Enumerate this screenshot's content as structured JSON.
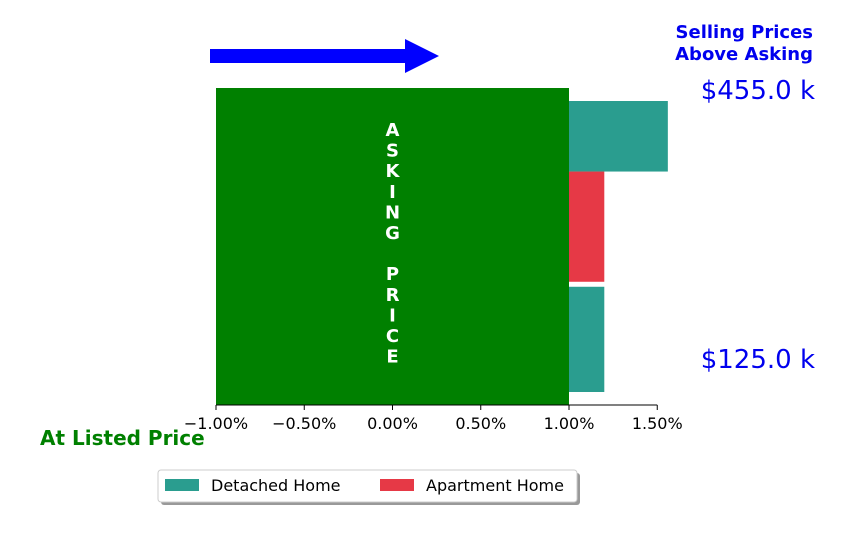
{
  "chart_data": {
    "type": "bar",
    "orientation": "horizontal",
    "title_lines": [
      "Selling Prices",
      "Above Asking"
    ],
    "x_ticks": [
      -1.0,
      -0.5,
      0.0,
      0.5,
      1.0,
      1.5
    ],
    "x_tick_labels": [
      "−1.00%",
      "−0.50%",
      "0.00%",
      "0.50%",
      "1.00%",
      "1.50%"
    ],
    "xlim": [
      -1.0,
      1.7
    ],
    "asking_block": {
      "from": -1.0,
      "to": 1.0,
      "color": "#008000",
      "label_letters": [
        "A",
        "S",
        "K",
        "I",
        "N",
        "G",
        "",
        "P",
        "R",
        "I",
        "C",
        "E"
      ]
    },
    "bars": [
      {
        "series": "Detached Home",
        "start": 1.0,
        "value": 1.56,
        "price_range": [
          375,
          455
        ]
      },
      {
        "series": "Apartment Home",
        "start": 1.0,
        "value": 1.2,
        "price_range": [
          250,
          375
        ]
      },
      {
        "series": "Detached Home",
        "start": 1.0,
        "value": 1.2,
        "price_range": [
          125,
          250
        ]
      }
    ],
    "price_labels": {
      "top": "$455.0 k",
      "bottom": "$125.0 k"
    },
    "listed_label": "At Listed Price",
    "legend": [
      {
        "name": "Detached Home",
        "color": "#2a9d8f"
      },
      {
        "name": "Apartment Home",
        "color": "#e63946"
      }
    ],
    "legend_placement": "bottom-center",
    "arrow": {
      "direction": "right",
      "color": "#0000ff"
    },
    "grid": false
  }
}
